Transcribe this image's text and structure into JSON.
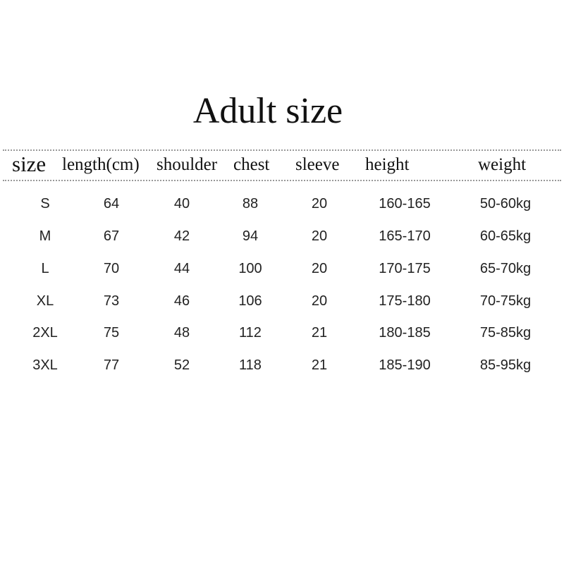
{
  "title": "Adult size",
  "headers": [
    "size",
    "length(cm)",
    "shoulder",
    "chest",
    "sleeve",
    "height",
    "weight"
  ],
  "rows": [
    [
      "S",
      "64",
      "40",
      "88",
      "20",
      "160-165",
      "50-60kg"
    ],
    [
      "M",
      "67",
      "42",
      "94",
      "20",
      "165-170",
      "60-65kg"
    ],
    [
      "L",
      "70",
      "44",
      "100",
      "20",
      "170-175",
      "65-70kg"
    ],
    [
      "XL",
      "73",
      "46",
      "106",
      "20",
      "175-180",
      "70-75kg"
    ],
    [
      "2XL",
      "75",
      "48",
      "112",
      "21",
      "180-185",
      "75-85kg"
    ],
    [
      "3XL",
      "77",
      "52",
      "118",
      "21",
      "185-190",
      "85-95kg"
    ]
  ]
}
